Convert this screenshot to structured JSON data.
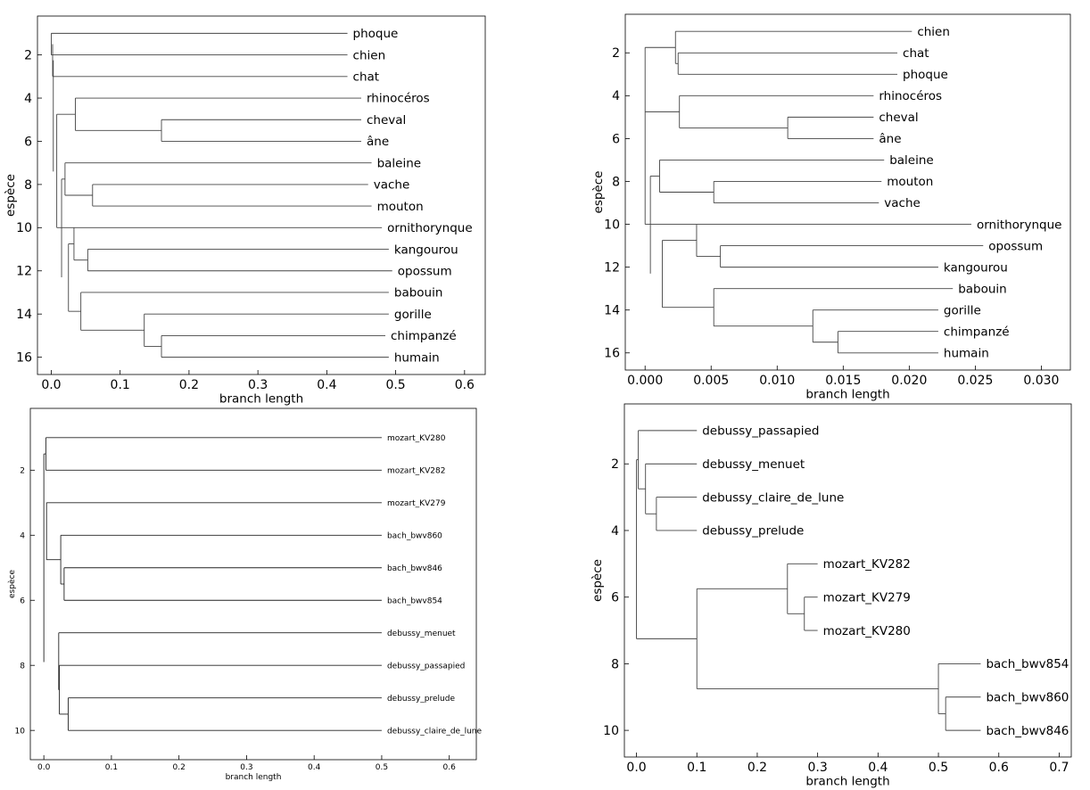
{
  "chart_data": [
    {
      "type": "dendrogram",
      "title": "",
      "xlabel": "branch length",
      "ylabel": "espèce",
      "xlim": [
        -0.02,
        0.63
      ],
      "ylim": [
        16.8,
        0.2
      ],
      "xticks": [
        "0.0",
        "0.1",
        "0.2",
        "0.3",
        "0.4",
        "0.5",
        "0.6"
      ],
      "yticks": [
        "2",
        "4",
        "6",
        "8",
        "10",
        "12",
        "14",
        "16"
      ],
      "leaves": [
        {
          "y": 1,
          "label": "phoque",
          "x": 0.43
        },
        {
          "y": 2,
          "label": "chien",
          "x": 0.43
        },
        {
          "y": 3,
          "label": "chat",
          "x": 0.43
        },
        {
          "y": 4,
          "label": "rhinocéros",
          "x": 0.45
        },
        {
          "y": 5,
          "label": "cheval",
          "x": 0.45
        },
        {
          "y": 6,
          "label": "âne",
          "x": 0.45
        },
        {
          "y": 7,
          "label": "baleine",
          "x": 0.465
        },
        {
          "y": 8,
          "label": "vache",
          "x": 0.46
        },
        {
          "y": 9,
          "label": "mouton",
          "x": 0.465
        },
        {
          "y": 10,
          "label": "ornithorynque",
          "x": 0.48
        },
        {
          "y": 11,
          "label": "kangourou",
          "x": 0.49
        },
        {
          "y": 12,
          "label": "opossum",
          "x": 0.495
        },
        {
          "y": 13,
          "label": "babouin",
          "x": 0.49
        },
        {
          "y": 14,
          "label": "gorille",
          "x": 0.49
        },
        {
          "y": 15,
          "label": "chimpanzé",
          "x": 0.485
        },
        {
          "y": 16,
          "label": "humain",
          "x": 0.49
        }
      ],
      "joins": [
        {
          "x": 0.0,
          "y1": 1,
          "y2": 2
        },
        {
          "x": 0.002,
          "y1": 1.5,
          "y2": 3
        },
        {
          "x": 0.035,
          "y1": 4,
          "y2": 5.5
        },
        {
          "x": 0.16,
          "y1": 5,
          "y2": 6
        },
        {
          "x": 0.06,
          "y1": 8,
          "y2": 9
        },
        {
          "x": 0.02,
          "y1": 7,
          "y2": 8.5
        },
        {
          "x": 0.053,
          "y1": 11,
          "y2": 12
        },
        {
          "x": 0.033,
          "y1": 10,
          "y2": 11.5
        },
        {
          "x": 0.16,
          "y1": 15,
          "y2": 16
        },
        {
          "x": 0.135,
          "y1": 14,
          "y2": 15.5
        },
        {
          "x": 0.043,
          "y1": 13,
          "y2": 14.75
        },
        {
          "x": 0.025,
          "y1": 10.75,
          "y2": 13.875
        },
        {
          "x": 0.015,
          "y1": 7.75,
          "y2": 12.3
        },
        {
          "x": 0.008,
          "y1": 4.75,
          "y2": 10.0
        },
        {
          "x": 0.003,
          "y1": 2.25,
          "y2": 7.4
        }
      ]
    },
    {
      "type": "dendrogram",
      "title": "",
      "xlabel": "branch length",
      "ylabel": "espèce",
      "xlim": [
        -0.0015,
        0.0322
      ],
      "ylim": [
        16.8,
        0.2
      ],
      "xticks": [
        "0.000",
        "0.005",
        "0.010",
        "0.015",
        "0.020",
        "0.025",
        "0.030"
      ],
      "yticks": [
        "2",
        "4",
        "6",
        "8",
        "10",
        "12",
        "14",
        "16"
      ],
      "leaves": [
        {
          "y": 1,
          "label": "chien",
          "x": 0.0202
        },
        {
          "y": 2,
          "label": "chat",
          "x": 0.0191
        },
        {
          "y": 3,
          "label": "phoque",
          "x": 0.0191
        },
        {
          "y": 4,
          "label": "rhinocéros",
          "x": 0.0173
        },
        {
          "y": 5,
          "label": "cheval",
          "x": 0.0173
        },
        {
          "y": 6,
          "label": "âne",
          "x": 0.0173
        },
        {
          "y": 7,
          "label": "baleine",
          "x": 0.0181
        },
        {
          "y": 8,
          "label": "mouton",
          "x": 0.0179
        },
        {
          "y": 9,
          "label": "vache",
          "x": 0.0177
        },
        {
          "y": 10,
          "label": "ornithorynque",
          "x": 0.0247
        },
        {
          "y": 11,
          "label": "opossum",
          "x": 0.0256
        },
        {
          "y": 12,
          "label": "kangourou",
          "x": 0.0222
        },
        {
          "y": 13,
          "label": "babouin",
          "x": 0.0233
        },
        {
          "y": 14,
          "label": "gorille",
          "x": 0.0222
        },
        {
          "y": 15,
          "label": "chimpanzé",
          "x": 0.0222
        },
        {
          "y": 16,
          "label": "humain",
          "x": 0.0222
        }
      ],
      "joins": [
        {
          "x": 0.0025,
          "y1": 2,
          "y2": 3
        },
        {
          "x": 0.0023,
          "y1": 1,
          "y2": 2.5
        },
        {
          "x": 0.0108,
          "y1": 5,
          "y2": 6
        },
        {
          "x": 0.0026,
          "y1": 4,
          "y2": 5.5
        },
        {
          "x": 0.0,
          "y1": 1.75,
          "y2": 4.75
        },
        {
          "x": 0.0052,
          "y1": 8,
          "y2": 9
        },
        {
          "x": 0.0011,
          "y1": 7,
          "y2": 8.5
        },
        {
          "x": 0.0057,
          "y1": 11,
          "y2": 12
        },
        {
          "x": 0.0039,
          "y1": 10,
          "y2": 11.5
        },
        {
          "x": 0.0146,
          "y1": 15,
          "y2": 16
        },
        {
          "x": 0.0127,
          "y1": 14,
          "y2": 15.5
        },
        {
          "x": 0.0052,
          "y1": 13,
          "y2": 14.75
        },
        {
          "x": 0.0013,
          "y1": 10.75,
          "y2": 13.875
        },
        {
          "x": 0.0004,
          "y1": 7.75,
          "y2": 12.3
        },
        {
          "x": 0.0,
          "y1": 4.75,
          "y2": 10.0
        }
      ]
    },
    {
      "type": "dendrogram",
      "title": "",
      "xlabel": "branch length",
      "ylabel": "espèce",
      "xlim": [
        -0.02,
        0.64
      ],
      "ylim": [
        10.9,
        0.1
      ],
      "xticks": [
        "0.0",
        "0.1",
        "0.2",
        "0.3",
        "0.4",
        "0.5",
        "0.6"
      ],
      "yticks": [
        "2",
        "4",
        "6",
        "8",
        "10"
      ],
      "leaves": [
        {
          "y": 1,
          "label": "mozart_KV280",
          "x": 0.5
        },
        {
          "y": 2,
          "label": "mozart_KV282",
          "x": 0.5
        },
        {
          "y": 3,
          "label": "mozart_KV279",
          "x": 0.5
        },
        {
          "y": 4,
          "label": "bach_bwv860",
          "x": 0.5
        },
        {
          "y": 5,
          "label": "bach_bwv846",
          "x": 0.5
        },
        {
          "y": 6,
          "label": "bach_bwv854",
          "x": 0.5
        },
        {
          "y": 7,
          "label": "debussy_menuet",
          "x": 0.5
        },
        {
          "y": 8,
          "label": "debussy_passapied",
          "x": 0.5
        },
        {
          "y": 9,
          "label": "debussy_prelude",
          "x": 0.5
        },
        {
          "y": 10,
          "label": "debussy_claire_de_lune",
          "x": 0.5
        }
      ],
      "joins": [
        {
          "x": 0.003,
          "y1": 1,
          "y2": 2
        },
        {
          "x": 0.03,
          "y1": 5,
          "y2": 6
        },
        {
          "x": 0.025,
          "y1": 4,
          "y2": 5.5
        },
        {
          "x": 0.004,
          "y1": 3,
          "y2": 4.75
        },
        {
          "x": 0.036,
          "y1": 9,
          "y2": 10
        },
        {
          "x": 0.023,
          "y1": 8,
          "y2": 9.5
        },
        {
          "x": 0.022,
          "y1": 7,
          "y2": 8.75
        },
        {
          "x": 0.0,
          "y1": 1.5,
          "y2": 7.9
        }
      ]
    },
    {
      "type": "dendrogram",
      "title": "",
      "xlabel": "branch length",
      "ylabel": "espèce",
      "xlim": [
        -0.02,
        0.72
      ],
      "ylim": [
        10.8,
        0.2
      ],
      "xticks": [
        "0.0",
        "0.1",
        "0.2",
        "0.3",
        "0.4",
        "0.5",
        "0.6",
        "0.7"
      ],
      "yticks": [
        "2",
        "4",
        "6",
        "8",
        "10"
      ],
      "leaves": [
        {
          "y": 1,
          "label": "debussy_passapied",
          "x": 0.1
        },
        {
          "y": 2,
          "label": "debussy_menuet",
          "x": 0.1
        },
        {
          "y": 3,
          "label": "debussy_claire_de_lune",
          "x": 0.1
        },
        {
          "y": 4,
          "label": "debussy_prelude",
          "x": 0.1
        },
        {
          "y": 5,
          "label": "mozart_KV282",
          "x": 0.3
        },
        {
          "y": 6,
          "label": "mozart_KV279",
          "x": 0.3
        },
        {
          "y": 7,
          "label": "mozart_KV280",
          "x": 0.3
        },
        {
          "y": 8,
          "label": "bach_bwv854",
          "x": 0.57
        },
        {
          "y": 9,
          "label": "bach_bwv860",
          "x": 0.57
        },
        {
          "y": 10,
          "label": "bach_bwv846",
          "x": 0.57
        }
      ],
      "joins": [
        {
          "x": 0.033,
          "y1": 3,
          "y2": 4
        },
        {
          "x": 0.015,
          "y1": 2,
          "y2": 3.5
        },
        {
          "x": 0.003,
          "y1": 1,
          "y2": 2.75
        },
        {
          "x": 0.278,
          "y1": 6,
          "y2": 7
        },
        {
          "x": 0.25,
          "y1": 5,
          "y2": 6.5
        },
        {
          "x": 0.512,
          "y1": 9,
          "y2": 10
        },
        {
          "x": 0.5,
          "y1": 8,
          "y2": 9.5
        },
        {
          "x": 0.1,
          "y1": 5.75,
          "y2": 8.75
        },
        {
          "x": 0.0,
          "y1": 1.875,
          "y2": 7.25
        }
      ]
    }
  ]
}
